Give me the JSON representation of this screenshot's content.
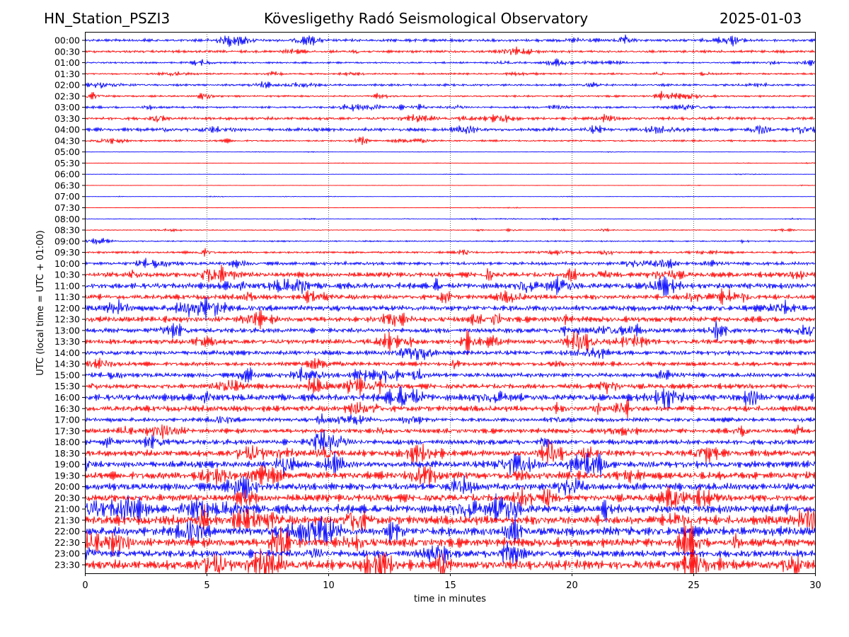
{
  "header": {
    "station": "HN_Station_PSZI3",
    "observatory": "Kövesligethy Radó Seismological Observatory",
    "date": "2025-01-03"
  },
  "chart_data": {
    "type": "line",
    "title": "Kövesligethy Radó Seismological Observatory",
    "xlabel": "time in minutes",
    "ylabel": "UTC (local time = UTC + 01:00)",
    "xlim": [
      0,
      30
    ],
    "xticks": [
      "0",
      "5",
      "10",
      "15",
      "20",
      "25",
      "30"
    ],
    "grid": "vertical dotted at x ticks",
    "colors": [
      "#0000ff",
      "#ff0000"
    ],
    "rows": [
      "00:00",
      "00:30",
      "01:00",
      "01:30",
      "02:00",
      "02:30",
      "03:00",
      "03:30",
      "04:00",
      "04:30",
      "05:00",
      "05:30",
      "06:00",
      "06:30",
      "07:00",
      "07:30",
      "08:00",
      "08:30",
      "09:00",
      "09:30",
      "10:00",
      "10:30",
      "11:00",
      "11:30",
      "12:00",
      "12:30",
      "13:00",
      "13:30",
      "14:00",
      "14:30",
      "15:00",
      "15:30",
      "16:00",
      "16:30",
      "17:00",
      "17:30",
      "18:00",
      "18:30",
      "19:00",
      "19:30",
      "20:00",
      "20:30",
      "21:00",
      "21:30",
      "22:00",
      "22:30",
      "23:00",
      "23:30"
    ],
    "relative_amplitude": [
      0.35,
      0.3,
      0.2,
      0.2,
      0.25,
      0.2,
      0.25,
      0.35,
      0.4,
      0.2,
      0.03,
      0.03,
      0.03,
      0.03,
      0.03,
      0.04,
      0.06,
      0.1,
      0.15,
      0.25,
      0.4,
      0.6,
      0.7,
      0.6,
      0.7,
      0.65,
      0.6,
      0.6,
      0.55,
      0.5,
      0.55,
      0.6,
      0.8,
      0.7,
      0.5,
      0.55,
      0.65,
      0.75,
      0.8,
      0.9,
      0.9,
      0.9,
      1.0,
      1.1,
      1.1,
      1.0,
      0.9,
      1.1
    ]
  }
}
